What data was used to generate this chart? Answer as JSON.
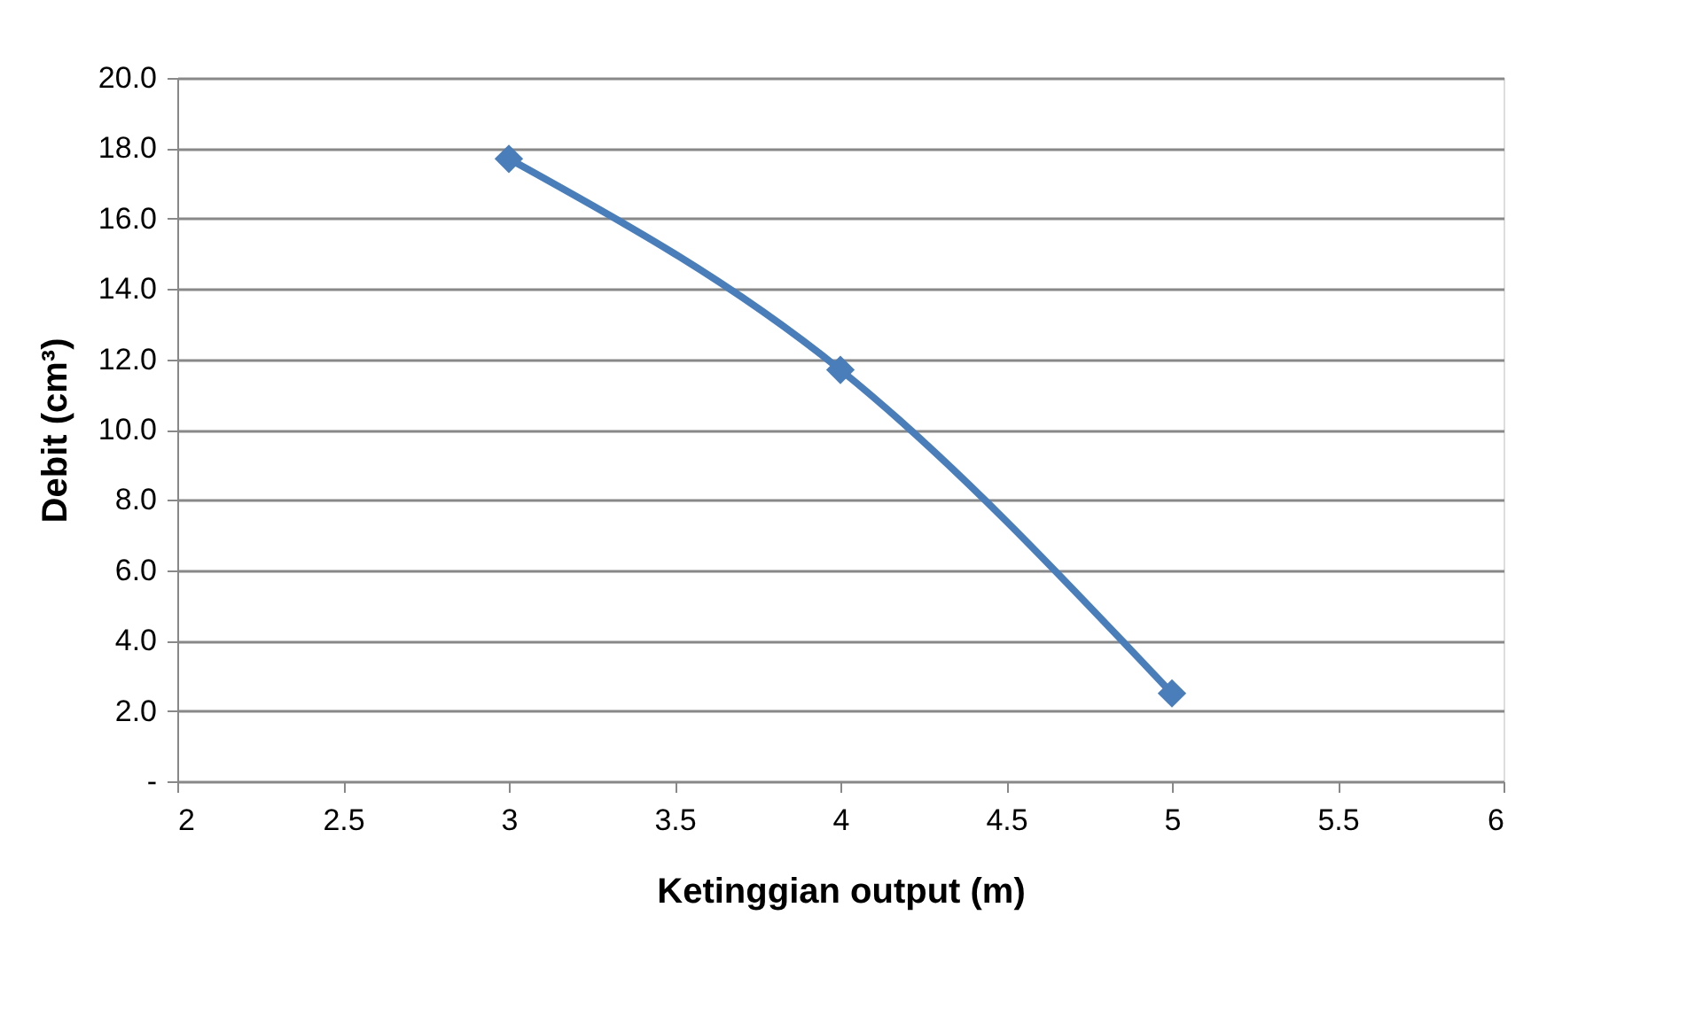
{
  "chart_data": {
    "type": "line",
    "xlabel": "Ketinggian output (m)",
    "ylabel": "Debit (cm³)",
    "x": [
      3,
      4,
      5
    ],
    "series": [
      {
        "color": "#4a7ebb",
        "values": [
          17.7,
          11.7,
          2.5
        ]
      }
    ],
    "xlim": [
      2,
      6
    ],
    "xticks": [
      2,
      2.5,
      3,
      3.5,
      4,
      4.5,
      5,
      5.5,
      6
    ],
    "ylim": [
      0,
      20
    ],
    "yticks": [
      {
        "value": 0,
        "label": "-"
      },
      {
        "value": 2,
        "label": "2.0"
      },
      {
        "value": 4,
        "label": "4.0"
      },
      {
        "value": 6,
        "label": "6.0"
      },
      {
        "value": 8,
        "label": "8.0"
      },
      {
        "value": 10,
        "label": "10.0"
      },
      {
        "value": 12,
        "label": "12.0"
      },
      {
        "value": 14,
        "label": "14.0"
      },
      {
        "value": 16,
        "label": "16.0"
      },
      {
        "value": 18,
        "label": "18.0"
      },
      {
        "value": 20,
        "label": "20.0"
      }
    ],
    "grid": "y",
    "marker": "diamond",
    "line_style": "solid",
    "legend": false
  }
}
